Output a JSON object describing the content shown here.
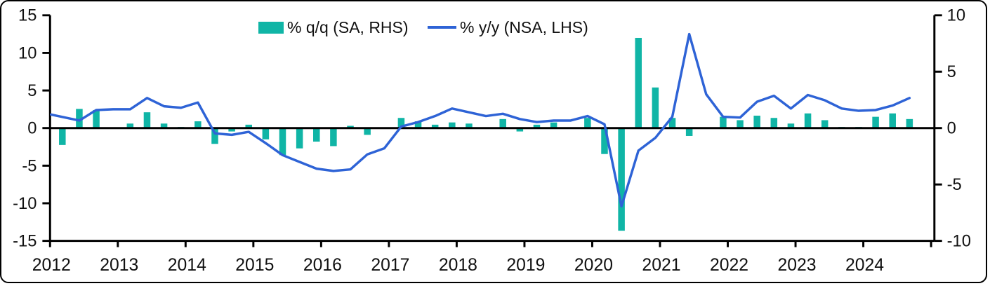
{
  "chart_data": {
    "type": "combo_bar_line",
    "title": "",
    "x_quarters": [
      "2012Q1",
      "2012Q2",
      "2012Q3",
      "2012Q4",
      "2013Q1",
      "2013Q2",
      "2013Q3",
      "2013Q4",
      "2014Q1",
      "2014Q2",
      "2014Q3",
      "2014Q4",
      "2015Q1",
      "2015Q2",
      "2015Q3",
      "2015Q4",
      "2016Q1",
      "2016Q2",
      "2016Q3",
      "2016Q4",
      "2017Q1",
      "2017Q2",
      "2017Q3",
      "2017Q4",
      "2018Q1",
      "2018Q2",
      "2018Q3",
      "2018Q4",
      "2019Q1",
      "2019Q2",
      "2019Q3",
      "2019Q4",
      "2020Q1",
      "2020Q2",
      "2020Q3",
      "2020Q4",
      "2021Q1",
      "2021Q2",
      "2021Q3",
      "2021Q4",
      "2022Q1",
      "2022Q2",
      "2022Q3",
      "2022Q4",
      "2023Q1",
      "2023Q2",
      "2023Q3",
      "2023Q4",
      "2024Q1",
      "2024Q2",
      "2024Q3"
    ],
    "x_year_ticks": [
      "2012",
      "2013",
      "2014",
      "2015",
      "2016",
      "2017",
      "2018",
      "2019",
      "2020",
      "2021",
      "2022",
      "2023",
      "2024"
    ],
    "series": [
      {
        "name": "% q/q (SA, RHS)",
        "type": "bar",
        "axis": "right",
        "color": "#10b5a6",
        "values": [
          -1.5,
          1.7,
          1.6,
          0,
          0.4,
          1.4,
          0.4,
          0.1,
          0.6,
          -1.4,
          -0.3,
          0.3,
          -1.0,
          -2.4,
          -1.8,
          -1.2,
          -1.6,
          0.2,
          -0.6,
          0,
          0.9,
          0.6,
          0.3,
          0.5,
          0.4,
          0,
          0.8,
          -0.3,
          0.3,
          0.5,
          0,
          0.9,
          -2.3,
          -9.1,
          8.0,
          3.6,
          0.9,
          -0.7,
          0,
          1.0,
          0.7,
          1.1,
          0.9,
          0.4,
          1.3,
          0.7,
          0.1,
          0.1,
          1.0,
          1.3,
          0.8
        ]
      },
      {
        "name": "% y/y (NSA, LHS)",
        "type": "line",
        "axis": "left",
        "color": "#2e63d6",
        "values": [
          1.8,
          1.0,
          2.4,
          2.5,
          2.5,
          4.0,
          2.9,
          2.7,
          3.4,
          -0.7,
          -0.9,
          -0.5,
          -2.0,
          -3.6,
          -4.5,
          -5.4,
          -5.7,
          -5.5,
          -3.5,
          -2.7,
          0.2,
          0.8,
          1.6,
          2.6,
          2.1,
          1.6,
          1.9,
          1.2,
          0.8,
          1.0,
          1.0,
          1.6,
          0.5,
          -10.4,
          -3.0,
          -1.3,
          1.5,
          12.5,
          4.5,
          1.5,
          1.4,
          3.5,
          4.3,
          2.6,
          4.4,
          3.7,
          2.6,
          2.3,
          2.4,
          3.0,
          4.0
        ]
      }
    ],
    "left_axis": {
      "min": -15,
      "max": 15,
      "ticks": [
        15,
        10,
        5,
        0,
        -5,
        -10,
        -15
      ]
    },
    "right_axis": {
      "min": -10,
      "max": 10,
      "ticks": [
        10,
        5,
        0,
        -5,
        -10
      ]
    },
    "grid": false,
    "legend_position": "top-center",
    "axis_color": "#000000",
    "text_color": "#111111",
    "background": "#ffffff"
  }
}
